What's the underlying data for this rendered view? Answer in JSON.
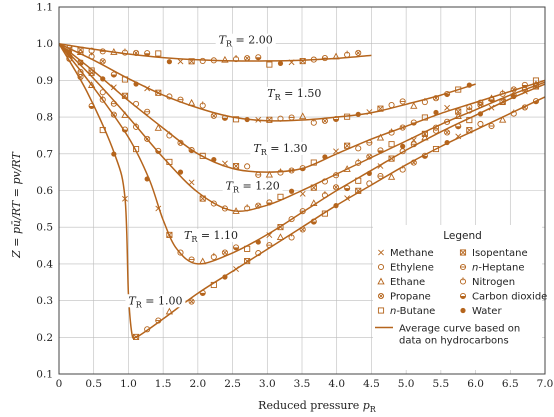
{
  "chart_data": {
    "type": "line",
    "xlabel": "Reduced pressure p_R",
    "ylabel": "Z = pū/RT = pv/RT",
    "xlim": [
      0,
      7.0
    ],
    "ylim": [
      0.1,
      1.1
    ],
    "xticks": [
      "0",
      "0.5",
      "1.0",
      "1.5",
      "2.0",
      "2.5",
      "3.0",
      "3.5",
      "4.0",
      "4.5",
      "5.0",
      "5.5",
      "6.0",
      "6.5",
      "7.0"
    ],
    "yticks": [
      "0.1",
      "0.2",
      "0.3",
      "0.4",
      "0.5",
      "0.6",
      "0.7",
      "0.8",
      "0.9",
      "1.0",
      "1.1"
    ],
    "grid": true,
    "curve_color": "#b5651d",
    "series": [
      {
        "name": "T_R = 2.00",
        "label": "T",
        "sub": "R",
        "val": " = 2.00",
        "x": [
          0,
          0.5,
          1.0,
          1.5,
          2.0,
          2.5,
          3.0,
          3.5,
          4.0,
          4.5
        ],
        "y": [
          1.0,
          0.985,
          0.972,
          0.962,
          0.956,
          0.953,
          0.953,
          0.955,
          0.96,
          0.968
        ]
      },
      {
        "name": "T_R = 1.50",
        "label": "T",
        "sub": "R",
        "val": " = 1.50",
        "x": [
          0,
          0.5,
          1.0,
          1.5,
          2.0,
          2.5,
          3.0,
          3.5,
          4.0,
          4.5,
          5.0,
          5.5,
          6.0
        ],
        "y": [
          1.0,
          0.955,
          0.905,
          0.86,
          0.825,
          0.8,
          0.79,
          0.792,
          0.8,
          0.812,
          0.835,
          0.86,
          0.89
        ]
      },
      {
        "name": "T_R = 1.30",
        "label": "T",
        "sub": "R",
        "val": " = 1.30",
        "x": [
          0,
          0.5,
          1.0,
          1.5,
          2.0,
          2.5,
          3.0,
          3.5,
          4.0,
          4.5,
          5.0,
          5.5,
          6.0,
          6.5,
          7.0
        ],
        "y": [
          1.0,
          0.925,
          0.845,
          0.77,
          0.7,
          0.66,
          0.65,
          0.66,
          0.7,
          0.74,
          0.775,
          0.81,
          0.84,
          0.87,
          0.9
        ]
      },
      {
        "name": "T_R = 1.20",
        "label": "T",
        "sub": "R",
        "val": " = 1.20",
        "x": [
          0,
          0.5,
          1.0,
          1.5,
          2.0,
          2.5,
          3.0,
          3.5,
          4.0,
          4.5,
          5.0,
          5.5,
          6.0,
          6.5,
          7.0
        ],
        "y": [
          1.0,
          0.905,
          0.8,
          0.69,
          0.595,
          0.545,
          0.56,
          0.6,
          0.645,
          0.69,
          0.735,
          0.78,
          0.82,
          0.86,
          0.895
        ]
      },
      {
        "name": "T_R = 1.10",
        "label": "T",
        "sub": "R",
        "val": " = 1.10",
        "x": [
          0,
          0.5,
          1.0,
          1.3,
          1.5,
          1.7,
          2.0,
          2.5,
          3.0,
          3.5,
          4.0,
          4.5,
          5.0,
          5.5,
          6.0,
          6.5,
          7.0
        ],
        "y": [
          1.0,
          0.88,
          0.745,
          0.63,
          0.52,
          0.44,
          0.4,
          0.43,
          0.48,
          0.54,
          0.6,
          0.655,
          0.71,
          0.76,
          0.805,
          0.85,
          0.89
        ]
      },
      {
        "name": "T_R = 1.00",
        "label": "T",
        "sub": "R",
        "val": " = 1.00",
        "x": [
          0,
          0.4,
          0.8,
          0.95,
          1.0,
          1.05,
          1.1,
          1.2,
          1.5,
          2.0,
          2.5,
          3.0,
          3.5,
          4.0,
          4.5,
          5.0,
          5.5,
          6.0,
          6.5,
          7.0
        ],
        "y": [
          1.0,
          0.87,
          0.7,
          0.58,
          0.32,
          0.21,
          0.2,
          0.21,
          0.25,
          0.32,
          0.38,
          0.44,
          0.5,
          0.56,
          0.615,
          0.67,
          0.72,
          0.765,
          0.81,
          0.855
        ]
      }
    ],
    "label_positions": [
      {
        "series": 0,
        "x": 2.3,
        "y": 1.0
      },
      {
        "series": 1,
        "x": 3.0,
        "y": 0.855
      },
      {
        "series": 2,
        "x": 2.8,
        "y": 0.705
      },
      {
        "series": 3,
        "x": 2.4,
        "y": 0.603
      },
      {
        "series": 4,
        "x": 1.8,
        "y": 0.468
      },
      {
        "series": 5,
        "x": 1.0,
        "y": 0.29
      }
    ],
    "legend": {
      "title": "Legend",
      "placement": "lower-right",
      "entries": [
        {
          "label": "Methane",
          "marker": "x"
        },
        {
          "label": "Isopentane",
          "marker": "square-x"
        },
        {
          "label": "Ethylene",
          "marker": "circle"
        },
        {
          "label": "n-Heptane",
          "marker": "circle-bar"
        },
        {
          "label": "Ethane",
          "marker": "triangle"
        },
        {
          "label": "Nitrogen",
          "marker": "circle-tick"
        },
        {
          "label": "Propane",
          "marker": "circle-x"
        },
        {
          "label": "Carbon dioxide",
          "marker": "circle-half"
        },
        {
          "label": "n-Butane",
          "marker": "square"
        },
        {
          "label": "Water",
          "marker": "circle-filled"
        }
      ],
      "line_label": [
        "Average curve based on",
        "data on hydrocarbons"
      ]
    }
  }
}
